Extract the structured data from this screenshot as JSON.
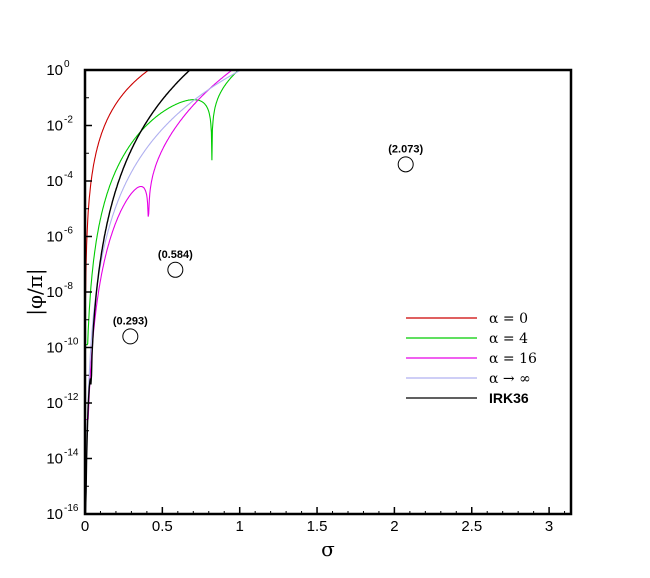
{
  "chart_data": {
    "type": "line",
    "xlabel": "σ",
    "ylabel": "|φ/π|",
    "xlim": [
      0,
      3.14159
    ],
    "ylim_log10": [
      -16,
      0
    ],
    "yscale": "log",
    "grid": false,
    "legend_position": "right-middle",
    "x_ticks": [
      "0",
      "0.5",
      "1",
      "1.5",
      "2",
      "2.5",
      "3"
    ],
    "x_tick_values": [
      0,
      0.5,
      1,
      1.5,
      2,
      2.5,
      3
    ],
    "y_ticks": [
      {
        "base": "10",
        "exp": "0",
        "value": 0
      },
      {
        "base": "10",
        "exp": "-2",
        "value": -2
      },
      {
        "base": "10",
        "exp": "-4",
        "value": -4
      },
      {
        "base": "10",
        "exp": "-6",
        "value": -6
      },
      {
        "base": "10",
        "exp": "-8",
        "value": -8
      },
      {
        "base": "10",
        "exp": "-10",
        "value": -10
      },
      {
        "base": "10",
        "exp": "-12",
        "value": -12
      },
      {
        "base": "10",
        "exp": "-14",
        "value": -14
      },
      {
        "base": "10",
        "exp": "-16",
        "value": -16
      }
    ],
    "series": [
      {
        "name": "α = 0",
        "color": "#cc0000",
        "model": {
          "lnA": 3.7,
          "p": 4,
          "zero": 2.86,
          "depth": -8.6,
          "cap": -3.3
        }
      },
      {
        "name": "α = 4",
        "color": "#00cc00",
        "model": {
          "lnA": 1.6,
          "p": 6,
          "zero": 0.82,
          "depth": -9.9,
          "cap": -7.2
        }
      },
      {
        "name": "α = 16",
        "color": "#e600e6",
        "model": {
          "lnA": 0.1,
          "p": 7.5,
          "zero": 0.41,
          "depth": -12.6,
          "cap": -9.1
        }
      },
      {
        "name": "α → ∞",
        "color": "#b0b0f0",
        "model": {
          "lnA": -0.05,
          "p": 7,
          "zero": null,
          "depth": null,
          "cap": null
        }
      },
      {
        "name": "IRK36",
        "color": "#000000",
        "bold": true,
        "model": {
          "lnA": -0.05,
          "p": 7,
          "zero": 0.04,
          "depth": -16,
          "cap": -15
        }
      }
    ],
    "annotations": [
      {
        "text": "(0.293)",
        "x": 0.293,
        "y_log10": -9.6
      },
      {
        "text": "(0.584)",
        "x": 0.584,
        "y_log10": -7.2
      },
      {
        "text": "(2.073)",
        "x": 2.073,
        "y_log10": -3.4
      }
    ]
  }
}
